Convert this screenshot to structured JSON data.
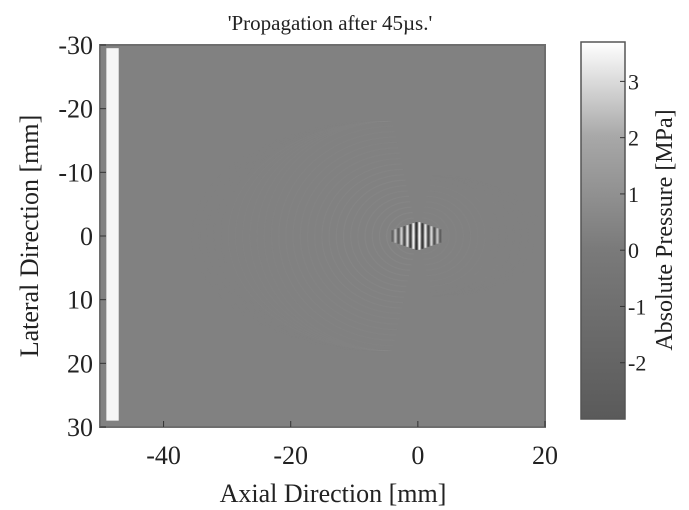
{
  "chart_data": {
    "type": "heatmap",
    "title": "'Propagation after 45µs.'",
    "xlabel": "Axial Direction [mm]",
    "ylabel": "Lateral Direction [mm]",
    "colorbar_label": "Absolute Pressure [MPa]",
    "xlim": [
      -50,
      20
    ],
    "ylim": [
      30,
      -30
    ],
    "clim": [
      -3,
      3.7
    ],
    "x_ticks": [
      -40,
      -20,
      0,
      20
    ],
    "y_ticks": [
      -30,
      -20,
      -10,
      0,
      10,
      20,
      30
    ],
    "colorbar_ticks": [
      3,
      2,
      1,
      0,
      -1,
      -2
    ],
    "colormap": "grayscale",
    "features": [
      {
        "name": "transducer",
        "x_range": [
          -49,
          -48
        ],
        "y_range": [
          -29.5,
          29
        ],
        "value": 3.5
      },
      {
        "name": "wave-packet",
        "x_center": 0,
        "y_center": 0,
        "x_halfwidth": 4,
        "y_halfwidth": 1.5,
        "peak_value": 3.5
      },
      {
        "name": "wavefront-arcs",
        "x_center": 0,
        "y_center": 0,
        "x_extent": [
          -30,
          12
        ],
        "y_extent": [
          -18,
          18
        ]
      }
    ]
  },
  "colors": {
    "background": "#818181",
    "axes_frame": "#6e6e6e",
    "transducer": "#f5f5f5"
  }
}
